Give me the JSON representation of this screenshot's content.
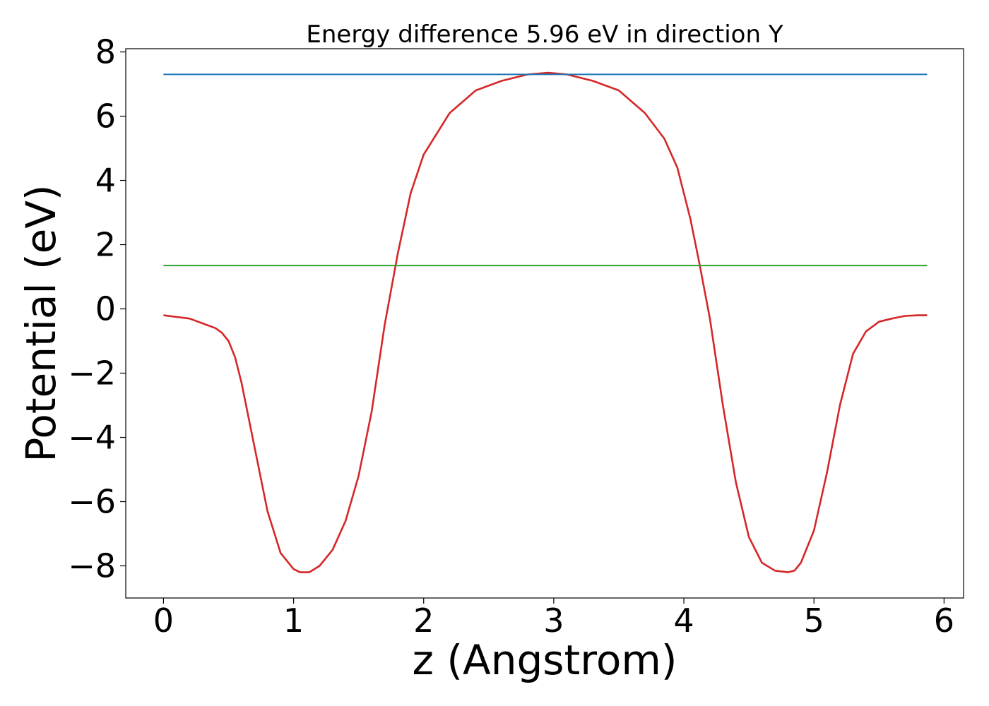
{
  "chart_data": {
    "type": "line",
    "title": "Energy difference 5.96 eV in direction Y",
    "xlabel": "z (Angstrom)",
    "ylabel": "Potential (eV)",
    "xlim": [
      -0.29,
      6.15
    ],
    "ylim": [
      -9,
      8.1
    ],
    "xticks": [
      0,
      1,
      2,
      3,
      4,
      5,
      6
    ],
    "yticks": [
      8,
      6,
      4,
      2,
      0,
      -2,
      -4,
      -6,
      -8
    ],
    "xtick_labels": [
      "0",
      "1",
      "2",
      "3",
      "4",
      "5",
      "6"
    ],
    "ytick_labels": [
      "8",
      "6",
      "4",
      "2",
      "0",
      "−2",
      "−4",
      "−6",
      "−8"
    ],
    "grid": false,
    "series": [
      {
        "color": "#d62728",
        "x": [
          0,
          0.1,
          0.2,
          0.3,
          0.4,
          0.45,
          0.5,
          0.55,
          0.6,
          0.7,
          0.8,
          0.9,
          1.0,
          1.05,
          1.12,
          1.2,
          1.3,
          1.4,
          1.5,
          1.6,
          1.7,
          1.8,
          1.9,
          2.0,
          2.2,
          2.4,
          2.6,
          2.8,
          2.96,
          3.1,
          3.3,
          3.5,
          3.7,
          3.85,
          3.95,
          4.05,
          4.12,
          4.2,
          4.3,
          4.4,
          4.5,
          4.6,
          4.7,
          4.8,
          4.85,
          4.9,
          5.0,
          5.1,
          5.2,
          5.3,
          5.4,
          5.5,
          5.6,
          5.7,
          5.8,
          5.87
        ],
        "y": [
          -0.2,
          -0.25,
          -0.3,
          -0.45,
          -0.6,
          -0.75,
          -1.0,
          -1.5,
          -2.3,
          -4.3,
          -6.3,
          -7.6,
          -8.1,
          -8.2,
          -8.2,
          -8.0,
          -7.5,
          -6.6,
          -5.2,
          -3.2,
          -0.5,
          1.7,
          3.6,
          4.8,
          6.1,
          6.8,
          7.1,
          7.3,
          7.35,
          7.3,
          7.1,
          6.8,
          6.1,
          5.3,
          4.4,
          2.8,
          1.4,
          -0.3,
          -3.0,
          -5.4,
          -7.1,
          -7.9,
          -8.15,
          -8.2,
          -8.15,
          -7.9,
          -6.9,
          -5.1,
          -3.0,
          -1.4,
          -0.7,
          -0.4,
          -0.3,
          -0.22,
          -0.2,
          -0.2
        ]
      },
      {
        "color": "#1f77b4",
        "x": [
          0,
          5.87
        ],
        "y": [
          7.3,
          7.3
        ]
      },
      {
        "color": "#2ca02c",
        "x": [
          0,
          5.87
        ],
        "y": [
          1.35,
          1.35
        ]
      }
    ]
  }
}
